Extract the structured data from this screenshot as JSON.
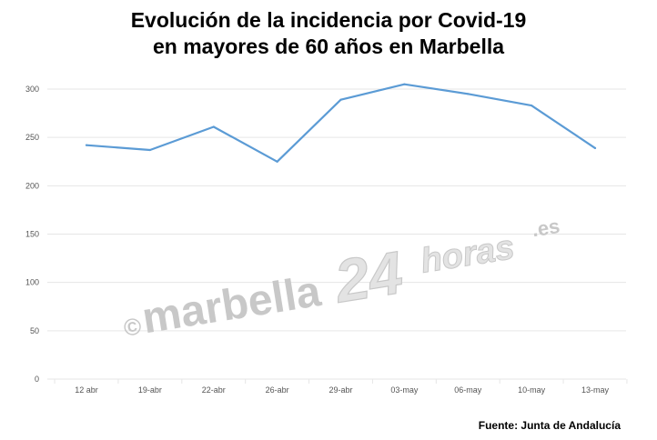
{
  "title_lines": [
    "Evolución de la incidencia por Covid-19",
    "en mayores de 60 años en Marbella"
  ],
  "watermark": {
    "copyright": "©",
    "brand_a": "marbella",
    "brand_num": "24",
    "brand_b": "horas",
    "brand_tld": ".es"
  },
  "source": "Fuente: Junta de Andalucía",
  "colors": {
    "line": "#5B9BD5",
    "grid": "#E6E6E6",
    "watermark": "#C8C8C8",
    "watermark_light": "#E3E3E3"
  },
  "chart_data": {
    "type": "line",
    "title": "Evolución de la incidencia por Covid-19 en mayores de 60 años en Marbella",
    "xlabel": "",
    "ylabel": "",
    "categories": [
      "12 abr",
      "19-abr",
      "22-abr",
      "26-abr",
      "29-abr",
      "03-may",
      "06-may",
      "10-may",
      "13-may"
    ],
    "values": [
      242,
      237,
      261,
      225,
      289,
      305,
      295,
      283,
      239
    ],
    "ylim": [
      0,
      300
    ],
    "yticks": [
      0,
      50,
      100,
      150,
      200,
      250,
      300
    ],
    "grid": true,
    "legend": "none"
  }
}
